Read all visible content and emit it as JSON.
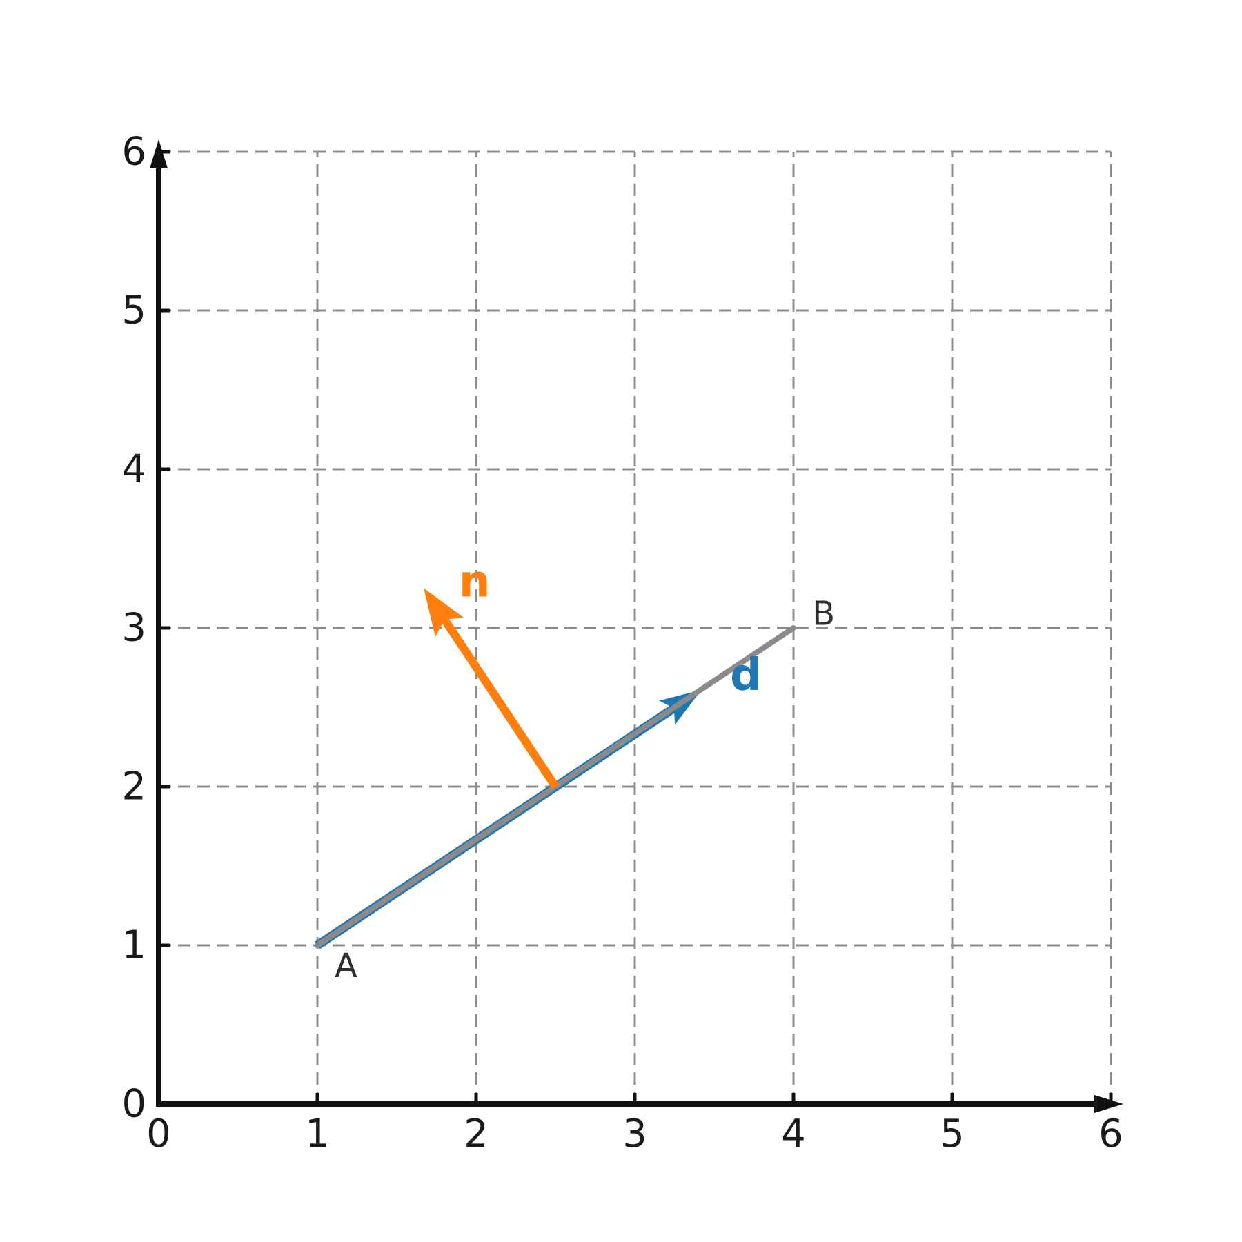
{
  "figure": {
    "background": "#ffffff",
    "colors": {
      "axis": "#111111",
      "grid": "#8c8c8c",
      "tick_labels": "#1a1a1a",
      "point_labels": "#2f2f2f",
      "segment": "#8a8a8a",
      "vector_d": "#1f77b4",
      "vector_n": "#ff7f0e"
    }
  },
  "chart_data": {
    "type": "line",
    "title": "",
    "xlabel": "",
    "ylabel": "",
    "xlim": [
      0,
      6
    ],
    "ylim": [
      0,
      6
    ],
    "x_ticks": [
      0,
      1,
      2,
      3,
      4,
      5,
      6
    ],
    "y_ticks": [
      0,
      1,
      2,
      3,
      4,
      5,
      6
    ],
    "x_tick_labels": [
      "0",
      "1",
      "2",
      "3",
      "4",
      "5",
      "6"
    ],
    "y_tick_labels": [
      "0",
      "1",
      "2",
      "3",
      "4",
      "5",
      "6"
    ],
    "grid": {
      "visible": true,
      "style": "dashed"
    },
    "legend": "none",
    "points": [
      {
        "label": "A",
        "x": 1,
        "y": 1,
        "label_x": 1.18,
        "label_y": 0.87
      },
      {
        "label": "B",
        "x": 4,
        "y": 3,
        "label_x": 4.19,
        "label_y": 3.09
      }
    ],
    "segment": {
      "x1": 1,
      "y1": 1,
      "x2": 4,
      "y2": 3,
      "color": "#8a8a8a"
    },
    "vectors": [
      {
        "label": "d",
        "tail_x": 1,
        "tail_y": 1,
        "tip_x": 3.42,
        "tip_y": 2.61,
        "color": "#1f77b4",
        "label_x": 3.7,
        "label_y": 2.7
      },
      {
        "label": "n",
        "tail_x": 2.5,
        "tail_y": 2,
        "tip_x": 1.67,
        "tip_y": 3.25,
        "color": "#ff7f0e",
        "label_x": 1.99,
        "label_y": 3.29
      }
    ]
  }
}
